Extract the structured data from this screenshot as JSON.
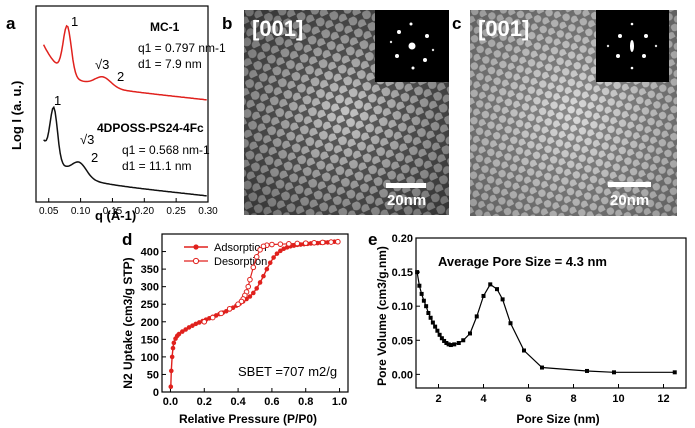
{
  "panel_labels": {
    "a": "a",
    "b": "b",
    "c": "c",
    "d": "d",
    "e": "e"
  },
  "panel_a": {
    "top_label": "MC-1",
    "top_q": "q1 = 0.797 nm-1",
    "top_d": "d1 = 7.9 nm",
    "bottom_label": "4DPOSS-PS24-4Fc",
    "bottom_q": "q1 = 0.568 nm-1",
    "bottom_d": "d1 = 11.1 nm",
    "peak_1": "1",
    "peak_sqrt3": "√3",
    "peak_2": "2",
    "ylabel": "Log I (a. u.)",
    "xlabel": "q (Å-1)",
    "xticks": [
      "0.05",
      "0.10",
      "0.15",
      "0.20",
      "0.25",
      "0.30"
    ],
    "colors": {
      "top": "#e0211d",
      "bottom": "#111111"
    }
  },
  "panel_b": {
    "zone": "[001]",
    "scale": "20nm"
  },
  "panel_c": {
    "zone": "[001]",
    "scale": "20nm"
  },
  "chart_data": [
    {
      "type": "line",
      "title": "",
      "xlabel": "Relative Pressure (P/P0)",
      "ylabel": "N2 Uptake (cm3/g STP)",
      "xlim": [
        -0.05,
        1.05
      ],
      "ylim": [
        0,
        450
      ],
      "xticks": [
        "0.0",
        "0.2",
        "0.4",
        "0.6",
        "0.8",
        "1.0"
      ],
      "yticks": [
        "0",
        "50",
        "100",
        "150",
        "200",
        "250",
        "300",
        "350",
        "400"
      ],
      "annotation": "SBET =707 m2/g",
      "legend": [
        "Adsorption",
        "Desorption"
      ],
      "series": [
        {
          "name": "Adsorption",
          "color": "#e0211d",
          "x": [
            0.002,
            0.005,
            0.01,
            0.015,
            0.02,
            0.03,
            0.04,
            0.05,
            0.07,
            0.09,
            0.11,
            0.13,
            0.15,
            0.17,
            0.19,
            0.21,
            0.23,
            0.25,
            0.27,
            0.29,
            0.31,
            0.33,
            0.35,
            0.37,
            0.39,
            0.41,
            0.43,
            0.45,
            0.47,
            0.49,
            0.51,
            0.53,
            0.55,
            0.57,
            0.59,
            0.61,
            0.63,
            0.65,
            0.67,
            0.69,
            0.71,
            0.73,
            0.75,
            0.77,
            0.79,
            0.81,
            0.83,
            0.85,
            0.87,
            0.89,
            0.91,
            0.93,
            0.95,
            0.97,
            0.99
          ],
          "values": [
            15,
            60,
            100,
            125,
            140,
            152,
            160,
            165,
            172,
            178,
            184,
            189,
            194,
            198,
            202,
            206,
            210,
            214,
            218,
            222,
            226,
            230,
            235,
            240,
            246,
            252,
            258,
            265,
            272,
            282,
            295,
            312,
            330,
            350,
            368,
            383,
            394,
            402,
            408,
            412,
            415,
            417,
            419,
            420,
            421,
            422,
            423,
            424,
            424,
            425,
            426,
            426,
            427,
            428,
            428
          ]
        },
        {
          "name": "Desorption",
          "color": "#e0211d",
          "x": [
            0.99,
            0.95,
            0.9,
            0.85,
            0.8,
            0.75,
            0.7,
            0.65,
            0.6,
            0.57,
            0.55,
            0.53,
            0.51,
            0.49,
            0.47,
            0.46,
            0.45,
            0.44,
            0.43,
            0.42,
            0.4,
            0.35,
            0.3,
            0.25,
            0.2
          ],
          "values": [
            428,
            427,
            426,
            425,
            424,
            423,
            422,
            421,
            420,
            418,
            415,
            405,
            385,
            355,
            320,
            300,
            285,
            275,
            265,
            258,
            250,
            237,
            224,
            212,
            200
          ]
        }
      ]
    },
    {
      "type": "line",
      "title": "",
      "xlabel": "Pore Size (nm)",
      "ylabel": "Pore Volume (cm3/g.nm)",
      "xlim": [
        1,
        13
      ],
      "ylim": [
        -0.02,
        0.2
      ],
      "xticks": [
        "2",
        "4",
        "6",
        "8",
        "10",
        "12"
      ],
      "yticks": [
        "0.00",
        "0.05",
        "0.10",
        "0.15",
        "0.20"
      ],
      "annotation": "Average Pore Size = 4.3 nm",
      "series": [
        {
          "name": "Pore size distribution",
          "color": "#000000",
          "x": [
            1.05,
            1.15,
            1.25,
            1.35,
            1.45,
            1.55,
            1.65,
            1.75,
            1.85,
            1.95,
            2.05,
            2.15,
            2.25,
            2.35,
            2.45,
            2.55,
            2.7,
            2.9,
            3.1,
            3.4,
            3.7,
            4.0,
            4.3,
            4.6,
            4.85,
            5.2,
            5.8,
            6.6,
            8.6,
            9.8,
            12.5
          ],
          "values": [
            0.15,
            0.13,
            0.118,
            0.108,
            0.1,
            0.09,
            0.083,
            0.076,
            0.07,
            0.064,
            0.058,
            0.053,
            0.049,
            0.046,
            0.044,
            0.043,
            0.044,
            0.046,
            0.05,
            0.06,
            0.085,
            0.115,
            0.132,
            0.125,
            0.11,
            0.075,
            0.035,
            0.01,
            0.005,
            0.003,
            0.003
          ]
        }
      ]
    }
  ]
}
